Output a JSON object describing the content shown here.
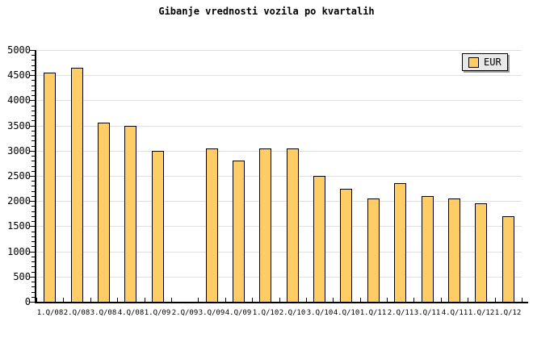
{
  "title": "Gibanje vrednosti vozila po kvartalih",
  "legend": {
    "label": "EUR"
  },
  "chart_data": {
    "type": "bar",
    "title": "Gibanje vrednosti vozila po kvartalih",
    "categories": [
      "1.Q/08",
      "2.Q/08",
      "3.Q/08",
      "4.Q/08",
      "1.Q/09",
      "2.Q/09",
      "3.Q/09",
      "4.Q/09",
      "1.Q/10",
      "2.Q/10",
      "3.Q/10",
      "4.Q/10",
      "1.Q/11",
      "2.Q/11",
      "3.Q/11",
      "4.Q/11",
      "1.Q/12",
      "1.Q/12"
    ],
    "series": [
      {
        "name": "EUR",
        "values": [
          4550,
          4650,
          3550,
          3500,
          3000,
          0,
          3050,
          2800,
          3050,
          3050,
          2500,
          2250,
          2050,
          2350,
          2100,
          2050,
          1950,
          1700
        ]
      }
    ],
    "xlabel": "",
    "ylabel": "",
    "ylim": [
      0,
      5000
    ],
    "ytick_step": 500,
    "y_minor_tick_step": 100,
    "grid": "horizontal",
    "legend_position": "top-right",
    "colors": {
      "bar_fill": "#FFCC66",
      "bar_border": "#000000",
      "grid": "#E0E0E0",
      "axis": "#000000",
      "legend_bg": "#E8E8E8",
      "legend_shadow": "#999999",
      "background": "#FFFFFF",
      "text": "#000000"
    }
  }
}
